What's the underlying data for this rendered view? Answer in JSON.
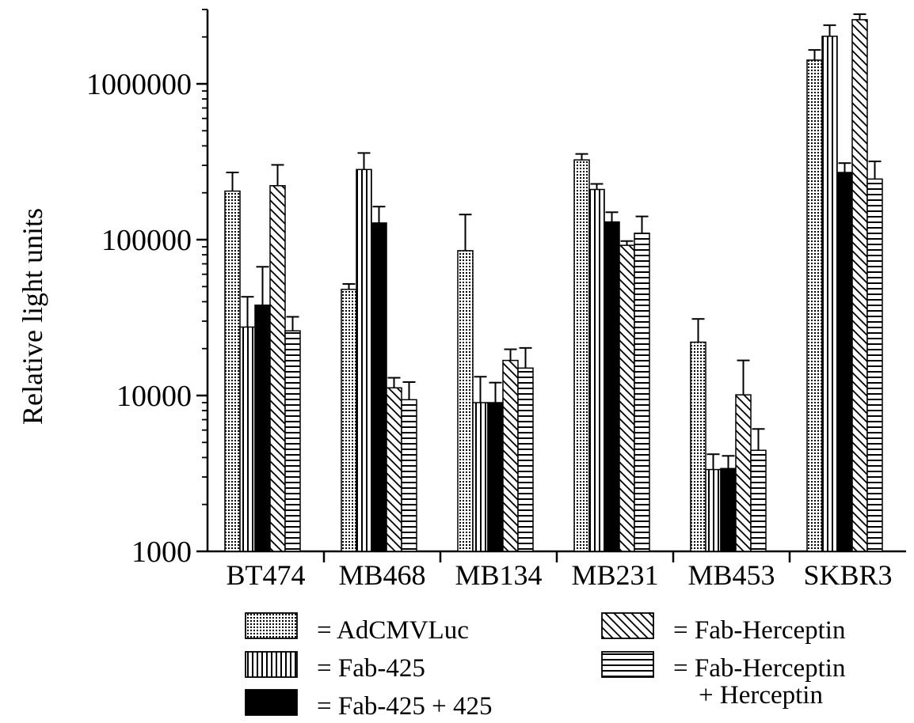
{
  "chart_data": {
    "type": "bar",
    "title": "",
    "xlabel": "",
    "ylabel": "Relative light units",
    "yscale": "log",
    "ylim": [
      1000,
      3000000
    ],
    "yticks": [
      1000,
      10000,
      100000,
      1000000
    ],
    "ytick_labels": [
      "1000",
      "10000",
      "100000",
      "1000000"
    ],
    "grid": false,
    "categories": [
      "BT474",
      "MB468",
      "MB134",
      "MB231",
      "MB453",
      "SKBR3"
    ],
    "series": [
      {
        "name": "= AdCMVLuc",
        "pattern": "dots",
        "values": [
          205000,
          48000,
          85000,
          325000,
          22000,
          1420000
        ],
        "errors": [
          270000,
          52000,
          145000,
          355000,
          31000,
          1650000
        ]
      },
      {
        "name": "= Fab-425",
        "pattern": "vertical-lines",
        "values": [
          27500,
          282000,
          9000,
          210000,
          3350,
          2020000
        ],
        "errors": [
          43000,
          360000,
          13200,
          228000,
          4200,
          2380000
        ]
      },
      {
        "name": "= Fab-425 + 425",
        "pattern": "solid",
        "values": [
          38000,
          128000,
          9000,
          130000,
          3400,
          270000
        ],
        "errors": [
          67000,
          163000,
          12100,
          150000,
          4100,
          310000
        ]
      },
      {
        "name": "= Fab-Herceptin",
        "pattern": "diagonal-lines",
        "values": [
          222000,
          11200,
          16800,
          92000,
          10100,
          2580000
        ],
        "errors": [
          302000,
          13000,
          19800,
          98000,
          16800,
          2800000
        ]
      },
      {
        "name": "= Fab-Herceptin\n+ Herceptin",
        "pattern": "horizontal-lines",
        "values": [
          26000,
          9400,
          15000,
          110000,
          4450,
          245000
        ],
        "errors": [
          32000,
          12200,
          20200,
          141000,
          6100,
          318000
        ]
      }
    ],
    "legend": {
      "placement": "bottom",
      "entries": [
        {
          "label": "= AdCMVLuc",
          "pattern": "dots"
        },
        {
          "label": "= Fab-425",
          "pattern": "vertical-lines"
        },
        {
          "label": "= Fab-425 + 425",
          "pattern": "solid"
        },
        {
          "label": "= Fab-Herceptin",
          "pattern": "diagonal-lines"
        },
        {
          "label": "= Fab-Herceptin",
          "label_line2": "+ Herceptin",
          "pattern": "horizontal-lines"
        }
      ]
    },
    "colors": {
      "ink": "#000000",
      "background": "#ffffff"
    }
  }
}
